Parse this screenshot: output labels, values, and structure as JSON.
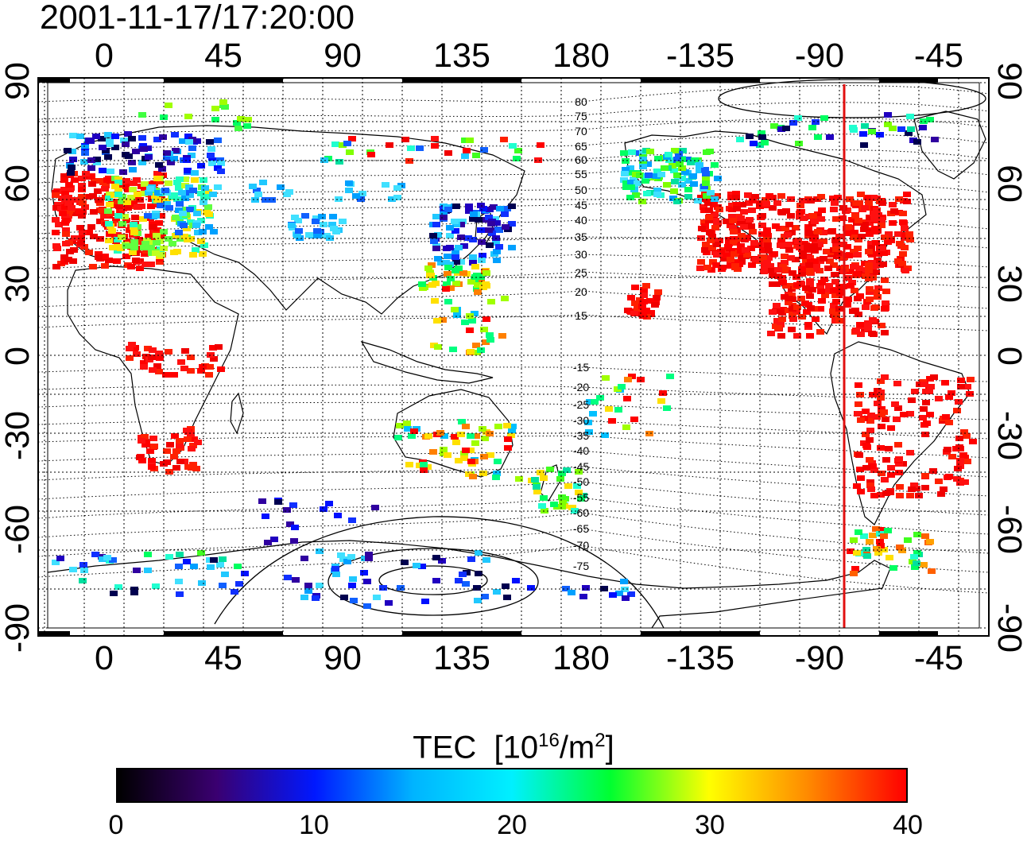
{
  "title": "2001-11-17/17:20:00",
  "map": {
    "lon_ticks": [
      "0",
      "45",
      "90",
      "135",
      "180",
      "-135",
      "-90",
      "-45"
    ],
    "lat_ticks": [
      "90",
      "60",
      "30",
      "0",
      "-30",
      "-60",
      "-90"
    ],
    "contour_labels_north": [
      "80",
      "75",
      "70",
      "65",
      "60",
      "55",
      "50",
      "45",
      "40",
      "35",
      "30",
      "25",
      "20",
      "15"
    ],
    "contour_labels_south": [
      "-15",
      "-20",
      "-25",
      "-30",
      "-35",
      "-40",
      "-45",
      "-50",
      "-55",
      "-60",
      "-65",
      "-70",
      "-75"
    ],
    "sun_meridian_color": "#e11010"
  },
  "colorbar": {
    "label": "TEC",
    "unit_prefix": "[10",
    "unit_exp": "16",
    "unit_mid": "/m",
    "unit_exp2": "2",
    "unit_suffix": "]",
    "ticks": [
      "0",
      "10",
      "20",
      "30",
      "40"
    ],
    "colors": [
      "#000000",
      "#3a0070",
      "#0018ff",
      "#00b4ff",
      "#00f0ff",
      "#00ff30",
      "#ffff00",
      "#ff8a00",
      "#ff0000"
    ]
  }
}
